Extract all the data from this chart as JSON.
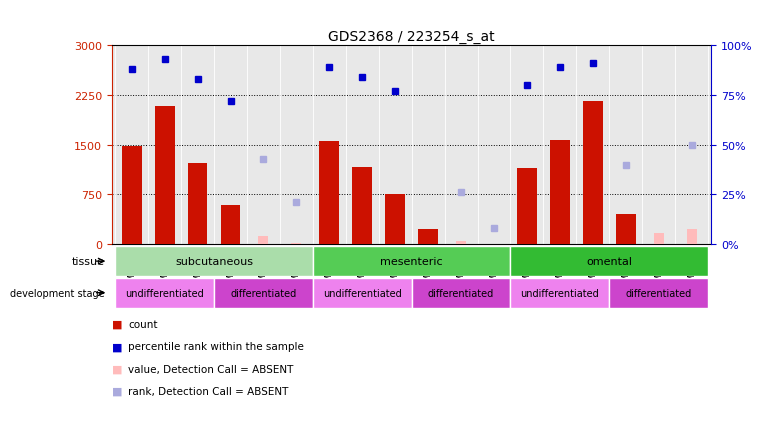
{
  "title": "GDS2368 / 223254_s_at",
  "samples": [
    "GSM30645",
    "GSM30646",
    "GSM30647",
    "GSM30654",
    "GSM30655",
    "GSM30656",
    "GSM30648",
    "GSM30649",
    "GSM30650",
    "GSM30657",
    "GSM30658",
    "GSM30659",
    "GSM30651",
    "GSM30652",
    "GSM30653",
    "GSM30660",
    "GSM30661",
    "GSM30662"
  ],
  "count_values": [
    1480,
    2080,
    1220,
    590,
    null,
    null,
    1560,
    1160,
    760,
    230,
    null,
    null,
    1140,
    1570,
    2160,
    450,
    null,
    null
  ],
  "percentile_values": [
    88,
    93,
    83,
    72,
    null,
    null,
    89,
    84,
    77,
    null,
    null,
    null,
    80,
    89,
    91,
    null,
    null,
    null
  ],
  "absent_value_values": [
    null,
    null,
    null,
    null,
    120,
    20,
    null,
    null,
    null,
    null,
    50,
    null,
    null,
    null,
    null,
    null,
    170,
    230
  ],
  "absent_rank_values": [
    null,
    null,
    null,
    null,
    43,
    21,
    null,
    null,
    null,
    null,
    26,
    8,
    null,
    null,
    null,
    40,
    null,
    50
  ],
  "ylim_left": [
    0,
    3000
  ],
  "ylim_right": [
    0,
    100
  ],
  "yticks_left": [
    0,
    750,
    1500,
    2250,
    3000
  ],
  "yticks_right": [
    0,
    25,
    50,
    75,
    100
  ],
  "tissue_groups": [
    {
      "label": "subcutaneous",
      "start": 0,
      "end": 6,
      "color": "#aaddaa"
    },
    {
      "label": "mesenteric",
      "start": 6,
      "end": 12,
      "color": "#55cc55"
    },
    {
      "label": "omental",
      "start": 12,
      "end": 18,
      "color": "#33bb33"
    }
  ],
  "dev_groups": [
    {
      "label": "undifferentiated",
      "start": 0,
      "end": 3,
      "color": "#ee82ee"
    },
    {
      "label": "differentiated",
      "start": 3,
      "end": 6,
      "color": "#cc44cc"
    },
    {
      "label": "undifferentiated",
      "start": 6,
      "end": 9,
      "color": "#ee82ee"
    },
    {
      "label": "differentiated",
      "start": 9,
      "end": 12,
      "color": "#cc44cc"
    },
    {
      "label": "undifferentiated",
      "start": 12,
      "end": 15,
      "color": "#ee82ee"
    },
    {
      "label": "differentiated",
      "start": 15,
      "end": 18,
      "color": "#cc44cc"
    }
  ],
  "bar_color": "#cc1100",
  "dot_color": "#0000cc",
  "absent_value_color": "#ffbbbb",
  "absent_rank_color": "#aaaadd",
  "bg_color": "#e8e8e8",
  "legend_items": [
    {
      "label": "count",
      "color": "#cc1100"
    },
    {
      "label": "percentile rank within the sample",
      "color": "#0000cc"
    },
    {
      "label": "value, Detection Call = ABSENT",
      "color": "#ffbbbb"
    },
    {
      "label": "rank, Detection Call = ABSENT",
      "color": "#aaaadd"
    }
  ]
}
